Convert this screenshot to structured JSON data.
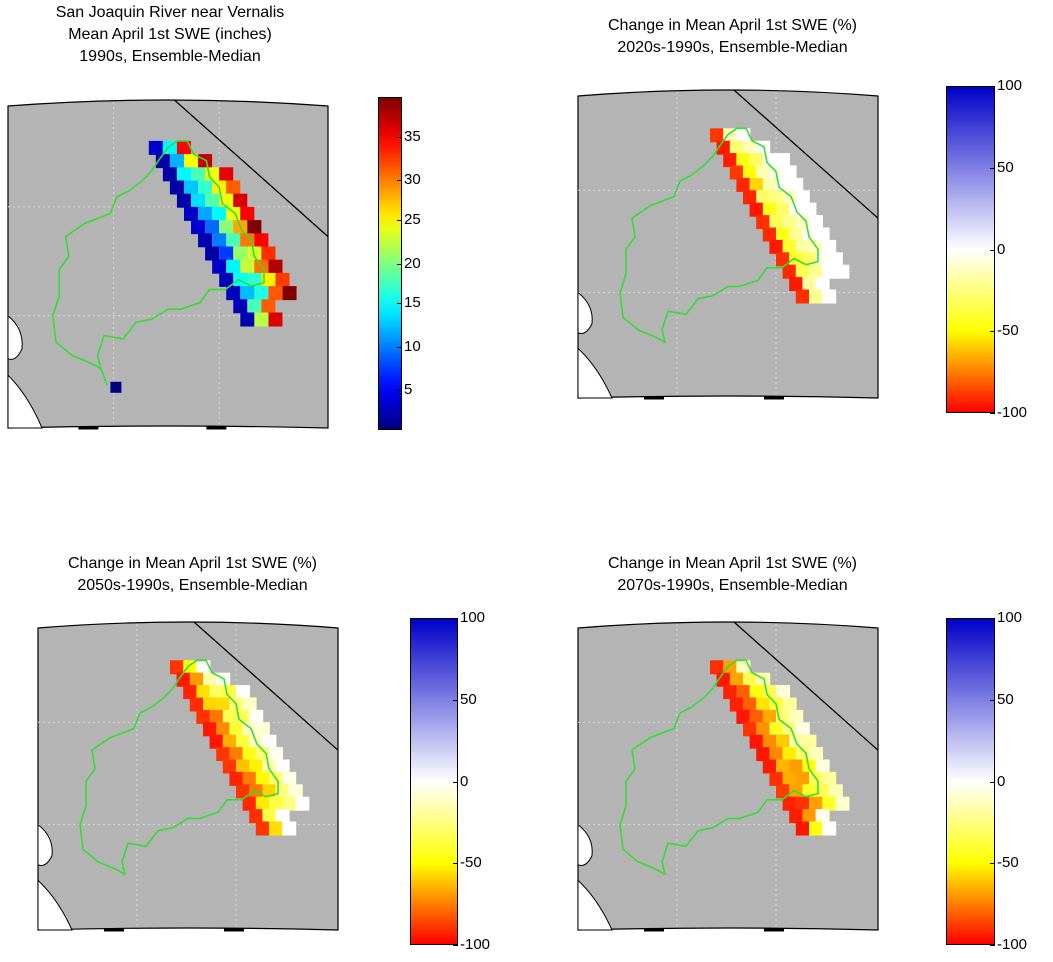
{
  "panels": [
    {
      "title": [
        "San Joaquin River near Vernalis",
        "Mean April 1st SWE (inches)",
        "1990s, Ensemble-Median"
      ],
      "colorbar": {
        "type": "jet",
        "ticks": [
          "35",
          "30",
          "25",
          "20",
          "15",
          "10",
          "5"
        ],
        "range": [
          0,
          39
        ]
      }
    },
    {
      "title": [
        "Change in Mean April 1st SWE (%)",
        "2020s-1990s, Ensemble-Median"
      ],
      "colorbar": {
        "type": "diverging",
        "ticks": [
          "100",
          "50",
          "0",
          "-50",
          "-100"
        ],
        "range": [
          -100,
          100
        ]
      }
    },
    {
      "title": [
        "Change in Mean April 1st SWE (%)",
        "2050s-1990s, Ensemble-Median"
      ],
      "colorbar": {
        "type": "diverging",
        "ticks": [
          "100",
          "50",
          "0",
          "-50",
          "-100"
        ],
        "range": [
          -100,
          100
        ]
      }
    },
    {
      "title": [
        "Change in Mean April 1st SWE (%)",
        "2070s-1990s, Ensemble-Median"
      ],
      "colorbar": {
        "type": "diverging",
        "ticks": [
          "100",
          "50",
          "0",
          "-50",
          "-100"
        ],
        "range": [
          -100,
          100
        ]
      }
    }
  ],
  "colors": {
    "map_background": "#b4b4b4",
    "basin_outline": "#33dd33",
    "ocean": "#ffffff"
  }
}
